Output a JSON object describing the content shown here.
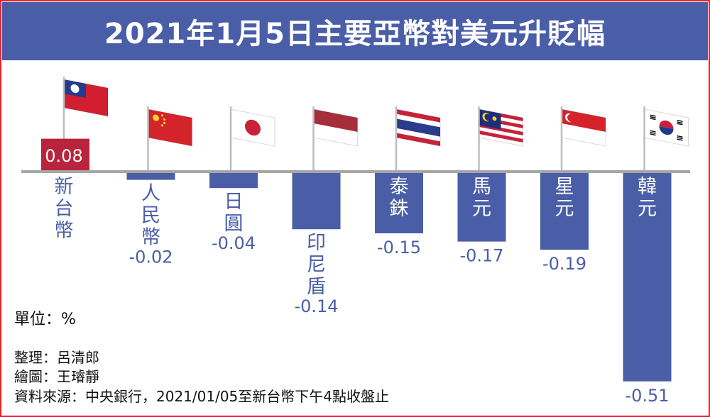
{
  "title": "2021年1月5日主要亞幣對美元升貶幅",
  "unit": "單位：%",
  "credits": {
    "editor": "整理：呂清郎",
    "illustrator": "繪圖：王璿靜",
    "source": "資料來源：中央銀行，2021/01/05至新台幣下午4點收盤止"
  },
  "colors": {
    "title_bg": "#4a5ea8",
    "bar_negative": "#4a5ea8",
    "bar_positive": "#b8243c",
    "label_text": "#4a5ea8",
    "frame_border": "#e8232a",
    "baseline": "#a6a6a6"
  },
  "chart_data": {
    "type": "bar",
    "categories": [
      "新台幣",
      "人民幣",
      "日圓",
      "印尼盾",
      "泰銖",
      "馬元",
      "星元",
      "韓元"
    ],
    "values": [
      0.08,
      -0.02,
      -0.04,
      -0.14,
      -0.15,
      -0.17,
      -0.19,
      -0.51
    ],
    "value_labels": [
      "0.08",
      "-0.02",
      "-0.04",
      "-0.14",
      "-0.15",
      "-0.17",
      "-0.19",
      "-0.51"
    ],
    "flags": [
      "taiwan-flag",
      "china-flag",
      "japan-flag",
      "indonesia-flag",
      "thailand-flag",
      "malaysia-flag",
      "singapore-flag",
      "korea-flag"
    ],
    "ylim": [
      -0.51,
      0.08
    ],
    "grid": false,
    "legend": "none"
  }
}
